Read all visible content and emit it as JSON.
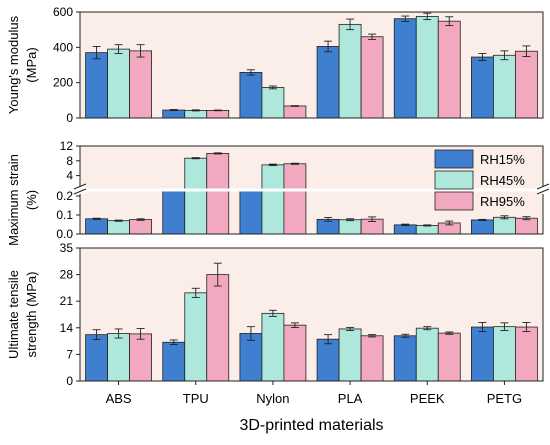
{
  "chart_data": {
    "type": "bar",
    "xlabel": "3D-printed materials",
    "categories": [
      "ABS",
      "TPU",
      "Nylon",
      "PLA",
      "PEEK",
      "PETG"
    ],
    "legend": {
      "placement": "top-right of middle panel",
      "entries": [
        "RH15%",
        "RH45%",
        "RH95%"
      ]
    },
    "colors": [
      "#3f7fcf",
      "#aee8dd",
      "#f2a9bf"
    ],
    "panels": [
      {
        "ylabel": [
          "Young's modulus",
          "(MPa)"
        ],
        "ylim": [
          0,
          600
        ],
        "yticks": [
          "0",
          "200",
          "400",
          "600"
        ],
        "series": [
          {
            "name": "RH15%",
            "values": [
              370,
              45,
              258,
              405,
              562,
              345
            ],
            "errors": [
              35,
              3,
              15,
              30,
              15,
              20
            ]
          },
          {
            "name": "RH45%",
            "values": [
              390,
              43,
              173,
              530,
              575,
              355
            ],
            "errors": [
              25,
              3,
              8,
              30,
              18,
              25
            ]
          },
          {
            "name": "RH95%",
            "values": [
              380,
              43,
              68,
              460,
              548,
              378
            ],
            "errors": [
              35,
              2,
              2,
              15,
              25,
              30
            ]
          }
        ]
      },
      {
        "ylabel": [
          "Maximum strain",
          "(%)"
        ],
        "broken_axis": true,
        "upper_range": [
          2,
          12
        ],
        "upper_ticks": [
          "4",
          "8",
          "12"
        ],
        "lower_range": [
          0,
          0.2
        ],
        "lower_ticks": [
          "0.0",
          "0.1",
          "0.2"
        ],
        "series": [
          {
            "name": "RH15%",
            "values": [
              0.08,
              2.0,
              2.0,
              0.077,
              0.048,
              0.074
            ],
            "errors": [
              0.003,
              0,
              0,
              0.01,
              0.004,
              0.003
            ]
          },
          {
            "name": "RH45%",
            "values": [
              0.07,
              8.7,
              6.9,
              0.075,
              0.045,
              0.088
            ],
            "errors": [
              0.003,
              0.15,
              0.2,
              0.005,
              0.003,
              0.008
            ]
          },
          {
            "name": "RH95%",
            "values": [
              0.076,
              10.0,
              7.2,
              0.078,
              0.058,
              0.083
            ],
            "errors": [
              0.004,
              0.15,
              0.15,
              0.012,
              0.01,
              0.008
            ]
          }
        ]
      },
      {
        "ylabel": [
          "Ultimate tensile",
          "strength (MPa)"
        ],
        "ylim": [
          0,
          35
        ],
        "yticks": [
          "0",
          "7",
          "14",
          "21",
          "28",
          "35"
        ],
        "series": [
          {
            "name": "RH15%",
            "values": [
              12.2,
              10.2,
              12.5,
              11.0,
              11.9,
              14.2
            ],
            "errors": [
              1.3,
              0.6,
              1.8,
              1.2,
              0.4,
              1.2
            ]
          },
          {
            "name": "RH45%",
            "values": [
              12.5,
              23.2,
              17.8,
              13.7,
              13.9,
              14.3
            ],
            "errors": [
              1.2,
              1.2,
              0.8,
              0.4,
              0.4,
              1.0
            ]
          },
          {
            "name": "RH95%",
            "values": [
              12.4,
              28.0,
              14.7,
              11.9,
              12.6,
              14.2
            ],
            "errors": [
              1.4,
              3.0,
              0.6,
              0.3,
              0.3,
              1.2
            ]
          }
        ]
      }
    ]
  }
}
